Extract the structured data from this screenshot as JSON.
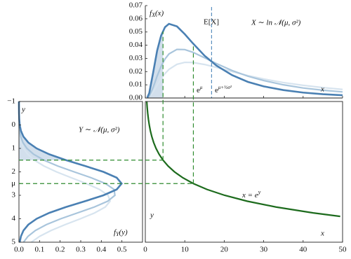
{
  "chart_data": [
    {
      "type": "line",
      "x": [
        0.5,
        1,
        2,
        3,
        4,
        5,
        6,
        8,
        10,
        12,
        15,
        18,
        22,
        26,
        30,
        35,
        40,
        45,
        50
      ],
      "series": [
        {
          "color": "#4a80b3",
          "values": [
            0.0003,
            0.0038,
            0.0195,
            0.0359,
            0.0473,
            0.0537,
            0.0562,
            0.0543,
            0.0484,
            0.0416,
            0.0321,
            0.0246,
            0.0173,
            0.0122,
            0.0088,
            0.006,
            0.0041,
            0.0029,
            0.0021
          ]
        },
        {
          "color": "#a9c5dc",
          "values": [
            0.0001,
            0.0014,
            0.0081,
            0.0166,
            0.024,
            0.0296,
            0.0334,
            0.0368,
            0.0367,
            0.0347,
            0.0305,
            0.0261,
            0.0208,
            0.0165,
            0.0132,
            0.01,
            0.0076,
            0.0059,
            0.0046
          ]
        },
        {
          "color": "#d7e4ef",
          "values": [
            0.0001,
            0.0008,
            0.0046,
            0.0097,
            0.0145,
            0.0186,
            0.0217,
            0.0255,
            0.027,
            0.0269,
            0.0254,
            0.0232,
            0.02,
            0.017,
            0.0144,
            0.0117,
            0.0096,
            0.0079,
            0.0065
          ]
        }
      ],
      "xlim": [
        0,
        50
      ],
      "ylim": [
        0,
        0.07
      ],
      "yticks": [
        {
          "value": 0,
          "label": "0.00"
        },
        {
          "value": 0.01,
          "label": "0.01"
        },
        {
          "value": 0.02,
          "label": "0.02"
        },
        {
          "value": 0.03,
          "label": "0.03"
        },
        {
          "value": 0.04,
          "label": "0.04"
        },
        {
          "value": 0.05,
          "label": "0.05"
        },
        {
          "value": 0.06,
          "label": "0.06"
        },
        {
          "value": 0.07,
          "label": "0.07"
        }
      ],
      "mean": 16.8,
      "mean_color": "#5b8fbf",
      "labels": {
        "density": {
          "base": "f",
          "sub": "X",
          "tail": "(x)"
        },
        "mean": "E[X]",
        "dist": "X ∼ ln 𝒩(μ, σ²)",
        "median": {
          "base": "e",
          "sup": "μ"
        },
        "mean_value": {
          "base": "e",
          "sup": "μ+½σ²"
        },
        "axis": "x"
      }
    },
    {
      "type": "line",
      "orientation": "horizontal",
      "y": [
        -1,
        -0.75,
        -0.5,
        -0.25,
        0,
        0.25,
        0.5,
        0.75,
        1,
        1.25,
        1.5,
        1.75,
        2,
        2.25,
        2.5,
        2.75,
        3,
        3.25,
        3.5,
        3.75,
        4,
        4.25,
        4.5,
        4.75,
        5
      ],
      "series": [
        {
          "color": "#4a80b3",
          "values": [
            3e-05,
            0.0001,
            0.0004,
            0.0014,
            0.0038,
            0.0096,
            0.0219,
            0.0456,
            0.086,
            0.1471,
            0.2283,
            0.3214,
            0.4102,
            0.4749,
            0.4987,
            0.4749,
            0.4102,
            0.3214,
            0.2283,
            0.1471,
            0.086,
            0.0456,
            0.0219,
            0.0096,
            0.0038
          ]
        },
        {
          "color": "#a9c5dc",
          "values": [
            1e-05,
            5e-05,
            0.0002,
            0.0005,
            0.0014,
            0.0036,
            0.0087,
            0.0192,
            0.0386,
            0.0713,
            0.1209,
            0.1879,
            0.2679,
            0.3503,
            0.4201,
            0.462,
            0.4661,
            0.4312,
            0.3658,
            0.2846,
            0.2031,
            0.133,
            0.0798,
            0.0439,
            0.0222
          ]
        },
        {
          "color": "#d7e4ef",
          "values": [
            1e-05,
            3e-05,
            0.0001,
            0.0003,
            0.0008,
            0.0021,
            0.0049,
            0.0109,
            0.0223,
            0.0424,
            0.0745,
            0.1211,
            0.1822,
            0.254,
            0.3276,
            0.3912,
            0.4325,
            0.4426,
            0.4193,
            0.3678,
            0.2987,
            0.2244,
            0.1562,
            0.1006,
            0.06
          ]
        }
      ],
      "xlim": [
        0,
        0.6
      ],
      "xticks": [
        {
          "value": 0,
          "label": "0.0"
        },
        {
          "value": 0.1,
          "label": "0.1"
        },
        {
          "value": 0.2,
          "label": "0.2"
        },
        {
          "value": 0.3,
          "label": "0.3"
        },
        {
          "value": 0.4,
          "label": "0.4"
        },
        {
          "value": 0.5,
          "label": "0.5"
        }
      ],
      "ylim": [
        -1,
        5
      ],
      "inverted_y": true,
      "yticks": [
        {
          "value": -1,
          "label": "−1"
        },
        0,
        1,
        2,
        {
          "value": 2.5,
          "label": "μ"
        },
        3,
        4,
        5
      ],
      "labels": {
        "axis": "y",
        "dist": "Y ∼ 𝒩(μ, σ²)",
        "density": {
          "base": "f",
          "sub": "Y",
          "tail": "(y)"
        }
      }
    },
    {
      "type": "line",
      "x": [
        0.368,
        0.472,
        0.607,
        0.779,
        1,
        1.284,
        1.649,
        2.117,
        2.718,
        3.49,
        4.482,
        5.755,
        7.389,
        9.488,
        12.18,
        15.64,
        20.09,
        25.79,
        33.12,
        42.52,
        49.4
      ],
      "values": [
        -1,
        -0.75,
        -0.5,
        -0.25,
        0,
        0.25,
        0.5,
        0.75,
        1,
        1.25,
        1.5,
        1.75,
        2,
        2.25,
        2.5,
        2.75,
        3,
        3.25,
        3.5,
        3.75,
        3.9
      ],
      "color": "#1d6b1d",
      "xlim": [
        0,
        50
      ],
      "xticks": [
        0,
        10,
        20,
        30,
        40,
        50
      ],
      "ylim": [
        -1,
        5
      ],
      "inverted_y": true,
      "guides": [
        {
          "x": 4.482,
          "y": 1.5
        },
        {
          "x": 12.18,
          "y": 2.5
        }
      ],
      "guide_color": "#2e8b2e",
      "labels": {
        "curve": {
          "lhs": "x = e",
          "sup": "y"
        },
        "y": "y",
        "x": "x"
      }
    }
  ]
}
